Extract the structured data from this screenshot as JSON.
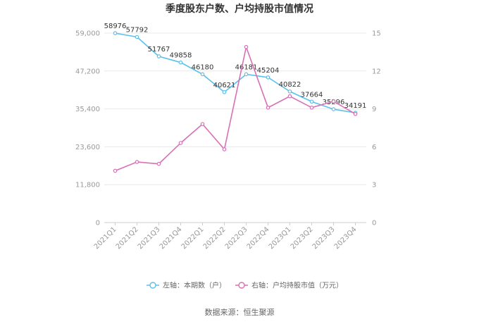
{
  "chart_data": {
    "type": "line",
    "title": "季度股东户数、户均持股市值情况",
    "categories": [
      "2021Q1",
      "2021Q2",
      "2021Q3",
      "2021Q4",
      "2022Q1",
      "2022Q2",
      "2022Q3",
      "2022Q4",
      "2023Q1",
      "2023Q2",
      "2023Q3",
      "2023Q4"
    ],
    "left_axis": {
      "ticks": [
        "0",
        "11,800",
        "23,600",
        "35,400",
        "47,200",
        "59,000"
      ],
      "ylim": [
        0,
        59000
      ]
    },
    "right_axis": {
      "ticks": [
        "0",
        "3",
        "6",
        "9",
        "12",
        "15"
      ],
      "ylim": [
        0,
        15
      ]
    },
    "series": [
      {
        "name": "左轴：本期数（户）",
        "axis": "left",
        "color": "#5bc0eb",
        "values": [
          58976,
          57792,
          51767,
          49858,
          46180,
          40621,
          46181,
          45204,
          40822,
          37664,
          35296,
          34191
        ],
        "labels": [
          "58976",
          "57792",
          "51767",
          "49858",
          "46180",
          "40621",
          "46181",
          "45204",
          "40822",
          "37664",
          "35296",
          "34191"
        ]
      },
      {
        "name": "右轴：户均持股市值（万元）",
        "axis": "right",
        "color": "#d96fb5",
        "values": [
          4.1,
          4.8,
          4.65,
          6.3,
          7.8,
          5.8,
          13.9,
          9.1,
          10.0,
          9.1,
          9.6,
          8.6
        ]
      }
    ],
    "grid": true,
    "legend_position": "bottom"
  },
  "source": "数据来源：恒生聚源"
}
